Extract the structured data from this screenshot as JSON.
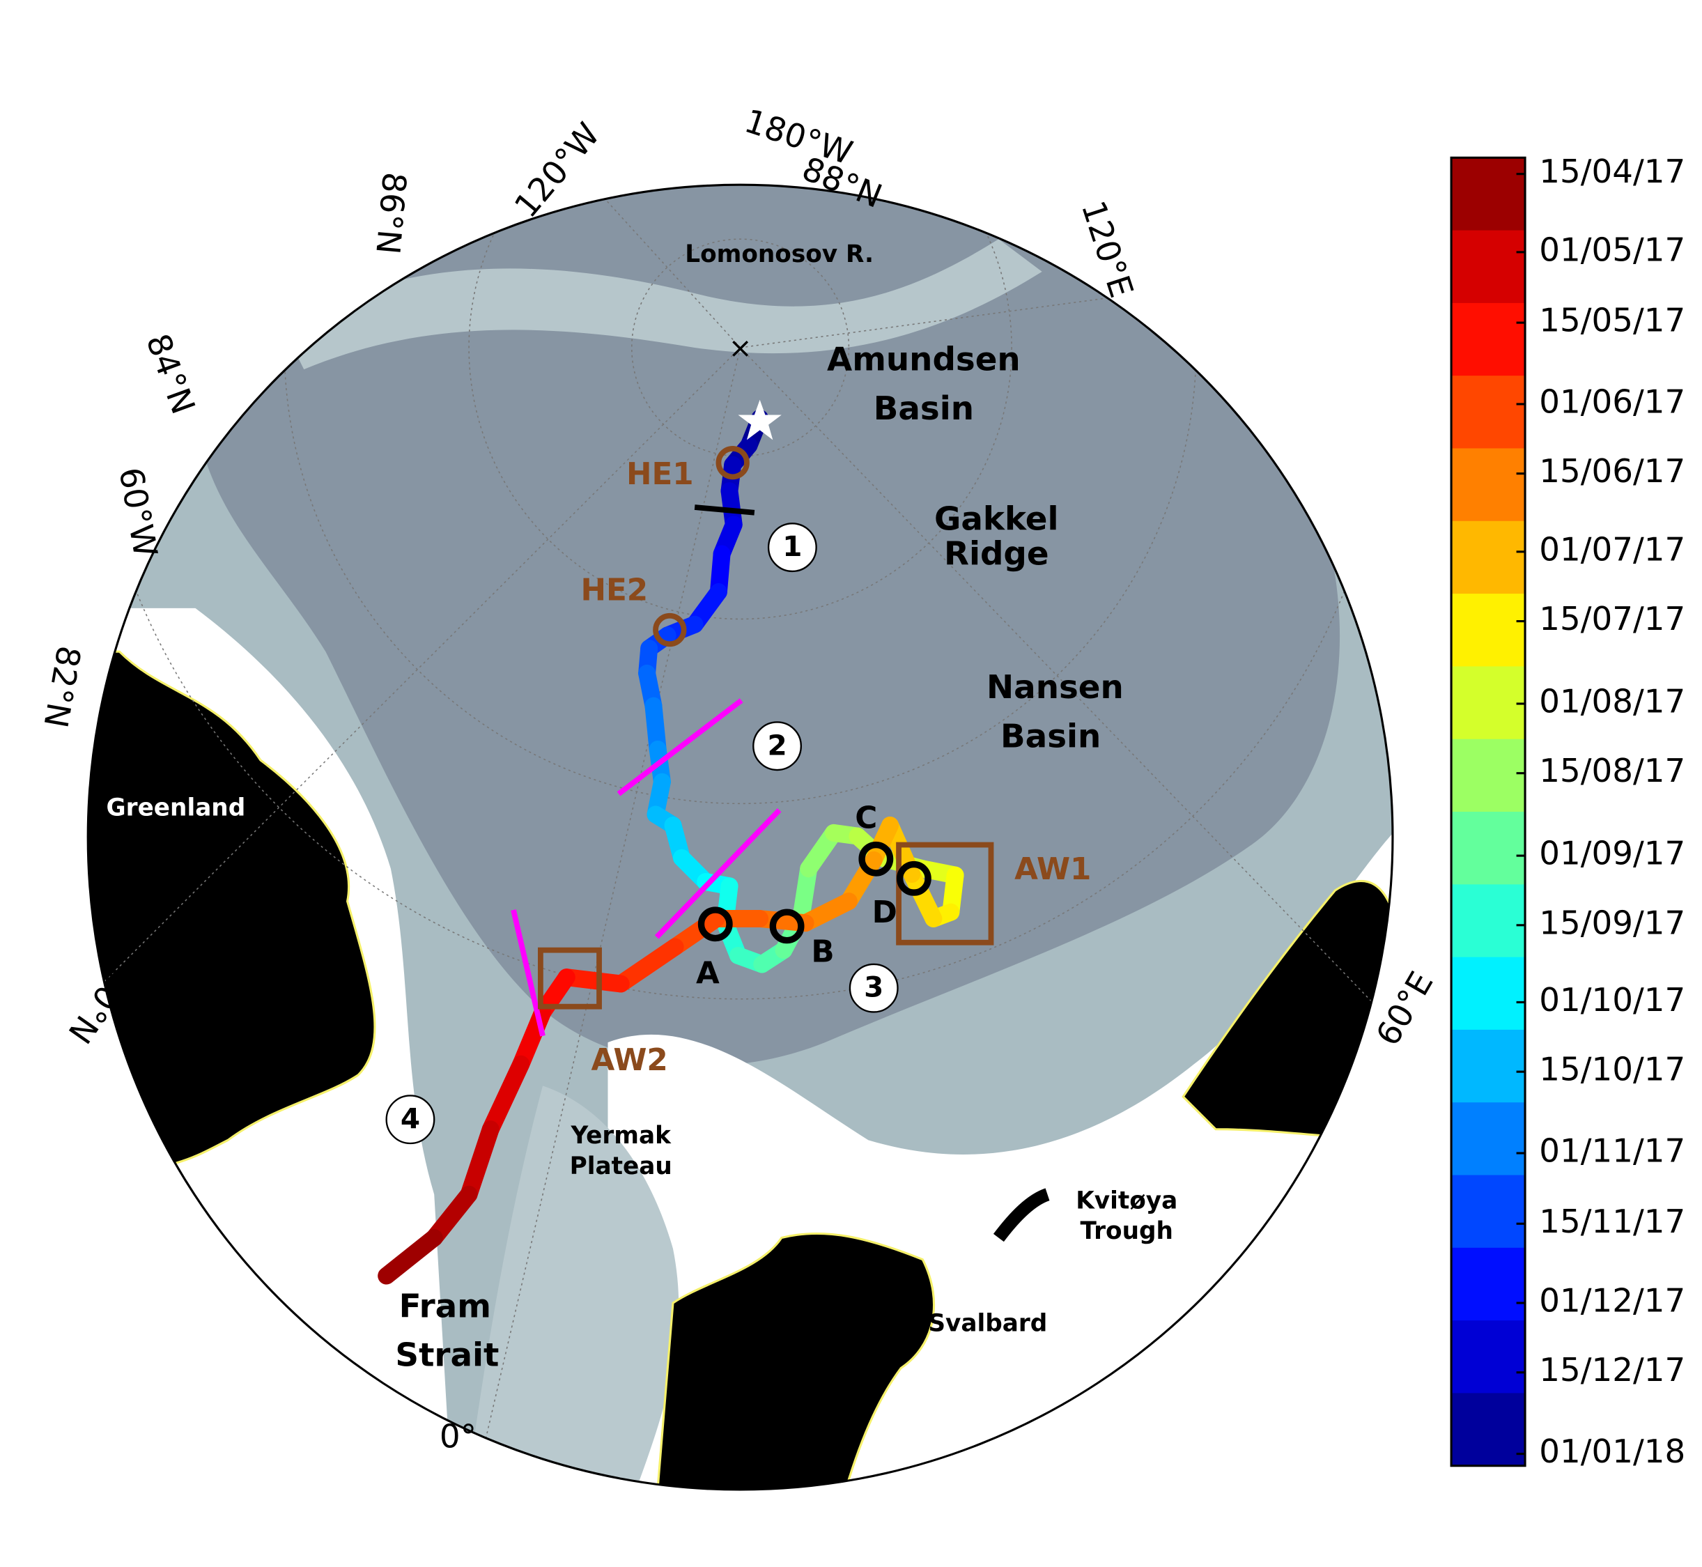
{
  "map": {
    "grid_labels": [
      "180°W",
      "88°N",
      "120°W",
      "86°N",
      "84°N",
      "60°W",
      "82°N",
      "80°N",
      "0°",
      "60°E",
      "120°E"
    ],
    "regions": [
      "Lomonosov R.",
      "Amundsen",
      "Basin",
      "Gakkel",
      "Ridge",
      "Nansen",
      "Basin",
      "Greenland",
      "Yermak",
      "Plateau",
      "Kvitøya",
      "Trough",
      "Svalbard",
      "Fram",
      "Strait"
    ],
    "markers": [
      "HE1",
      "HE2",
      "AW1",
      "AW2",
      "A",
      "B",
      "C",
      "D"
    ],
    "segments": [
      "1",
      "2",
      "3",
      "4"
    ]
  },
  "colorbar": {
    "labels": [
      "15/04/17",
      "01/05/17",
      "15/05/17",
      "01/06/17",
      "15/06/17",
      "01/07/17",
      "15/07/17",
      "01/08/17",
      "15/08/17",
      "01/09/17",
      "15/09/17",
      "01/10/17",
      "15/10/17",
      "01/11/17",
      "15/11/17",
      "01/12/17",
      "15/12/17",
      "01/01/18"
    ]
  }
}
